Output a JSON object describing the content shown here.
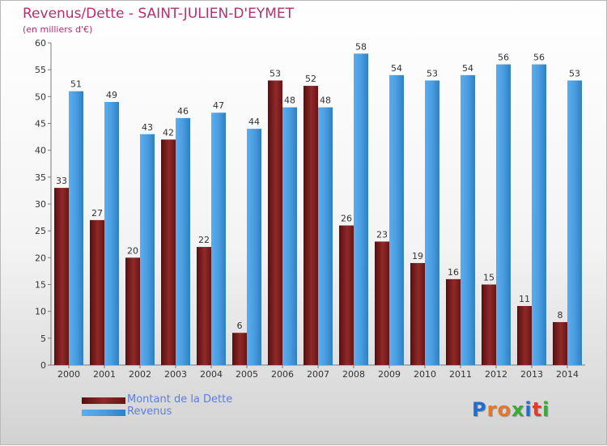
{
  "title": "Revenus/Dette - SAINT-JULIEN-D'EYMET",
  "subtitle": "(en milliers d'€)",
  "colors": {
    "dette": "#7b1c1c",
    "revenus": "#4d9fe2",
    "title": "#b3306f",
    "legend_text": "#5a7de0"
  },
  "chart_data": {
    "type": "bar",
    "categories": [
      "2000",
      "2001",
      "2002",
      "2003",
      "2004",
      "2005",
      "2006",
      "2007",
      "2008",
      "2009",
      "2010",
      "2011",
      "2012",
      "2013",
      "2014"
    ],
    "series": [
      {
        "name": "Montant de la Dette",
        "values": [
          33,
          27,
          20,
          42,
          22,
          6,
          53,
          52,
          26,
          23,
          19,
          16,
          15,
          11,
          8
        ]
      },
      {
        "name": "Revenus",
        "values": [
          51,
          49,
          43,
          46,
          47,
          44,
          48,
          48,
          58,
          54,
          53,
          54,
          56,
          56,
          53
        ]
      }
    ],
    "ylim": [
      0,
      60
    ],
    "yticks": [
      0,
      5,
      10,
      15,
      20,
      25,
      30,
      35,
      40,
      45,
      50,
      55,
      60
    ],
    "grid": false,
    "legend": "bottom-left"
  },
  "legend": {
    "dette_label": "Montant de la Dette",
    "revenus_label": "Revenus"
  },
  "logo": {
    "text": "Proxiti"
  }
}
